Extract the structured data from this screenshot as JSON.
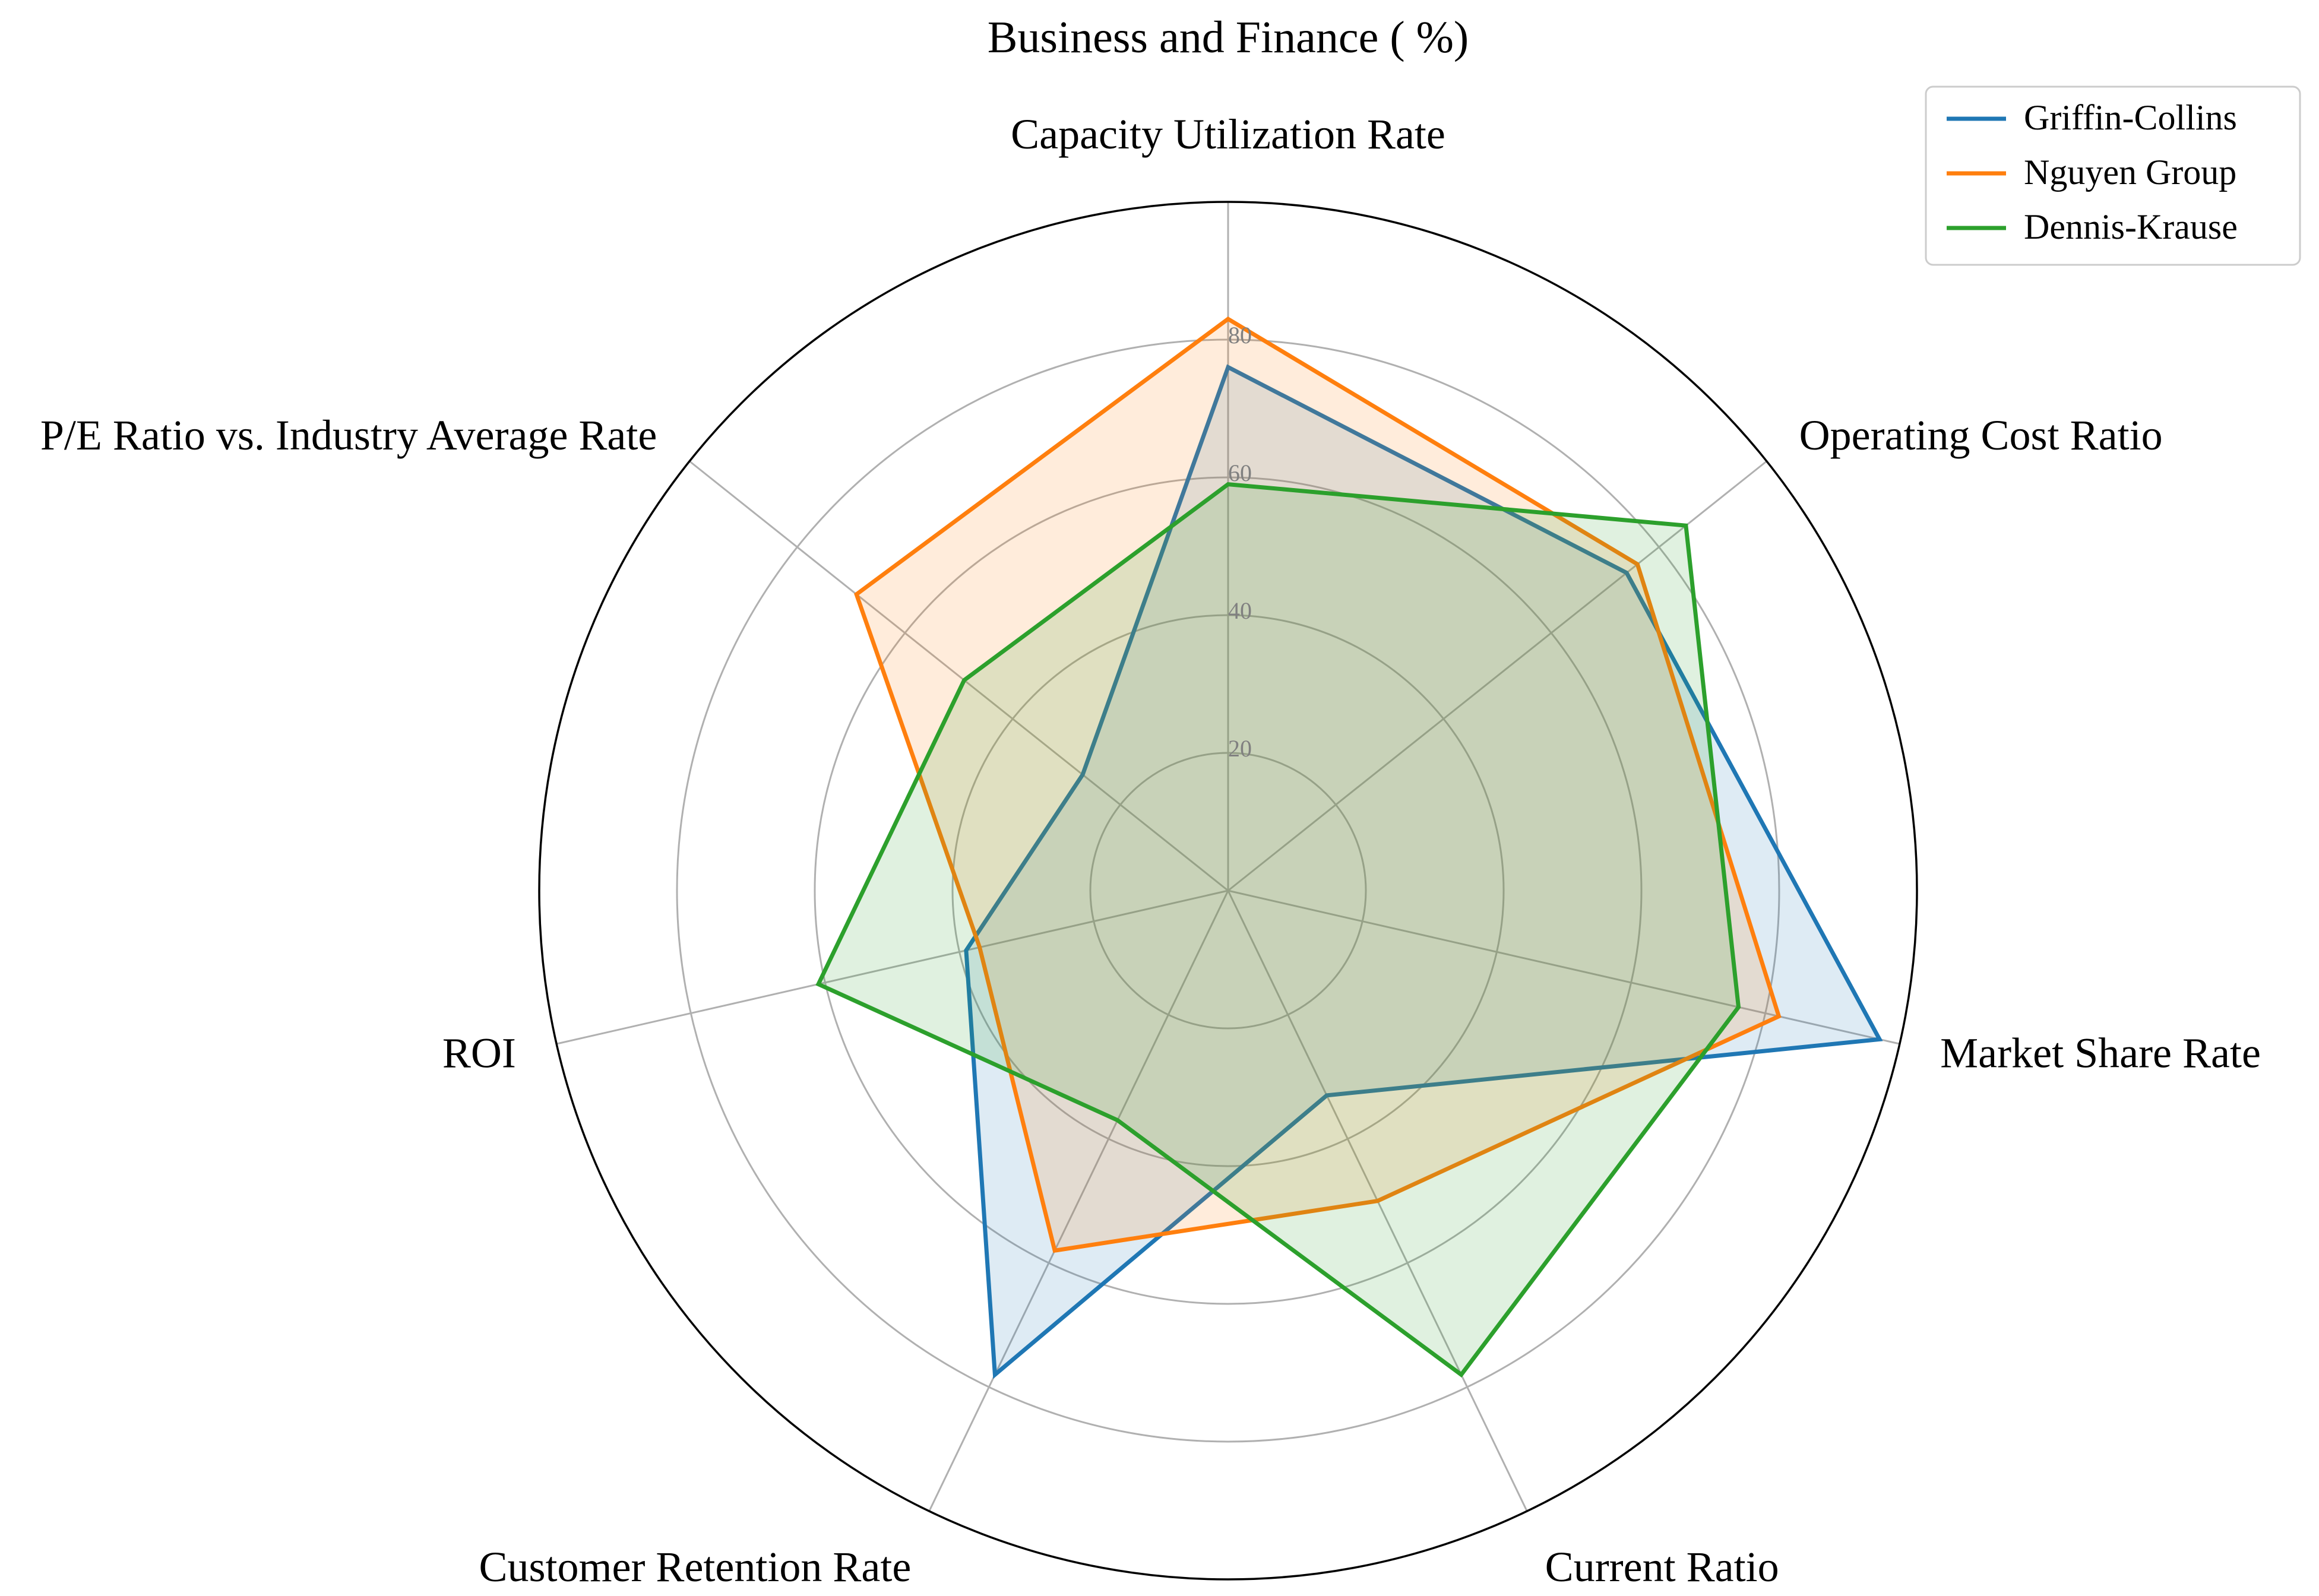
{
  "chart_data": {
    "type": "radar",
    "title": "Business and Finance ( %)",
    "categories": [
      "Capacity Utilization Rate",
      "Operating Cost Ratio",
      "Market Share Rate",
      "Current Ratio",
      "Customer Retention Rate",
      "ROI",
      "P/E Ratio vs. Industry Average Rate"
    ],
    "rlim": [
      0,
      100
    ],
    "rticks": [
      "20",
      "40",
      "60",
      "80"
    ],
    "grid": true,
    "legend_position": "top-right",
    "series": [
      {
        "name": "Griffin-Collins",
        "color": "#1f77b4",
        "values": [
          76,
          74,
          97,
          33,
          78,
          39,
          27
        ]
      },
      {
        "name": "Nguyen Group",
        "color": "#ff7f0e",
        "values": [
          83,
          76,
          82,
          50,
          58,
          37,
          69
        ]
      },
      {
        "name": "Dennis-Krause",
        "color": "#2ca02c",
        "values": [
          59,
          85,
          76,
          78,
          37,
          61,
          49
        ]
      }
    ]
  }
}
